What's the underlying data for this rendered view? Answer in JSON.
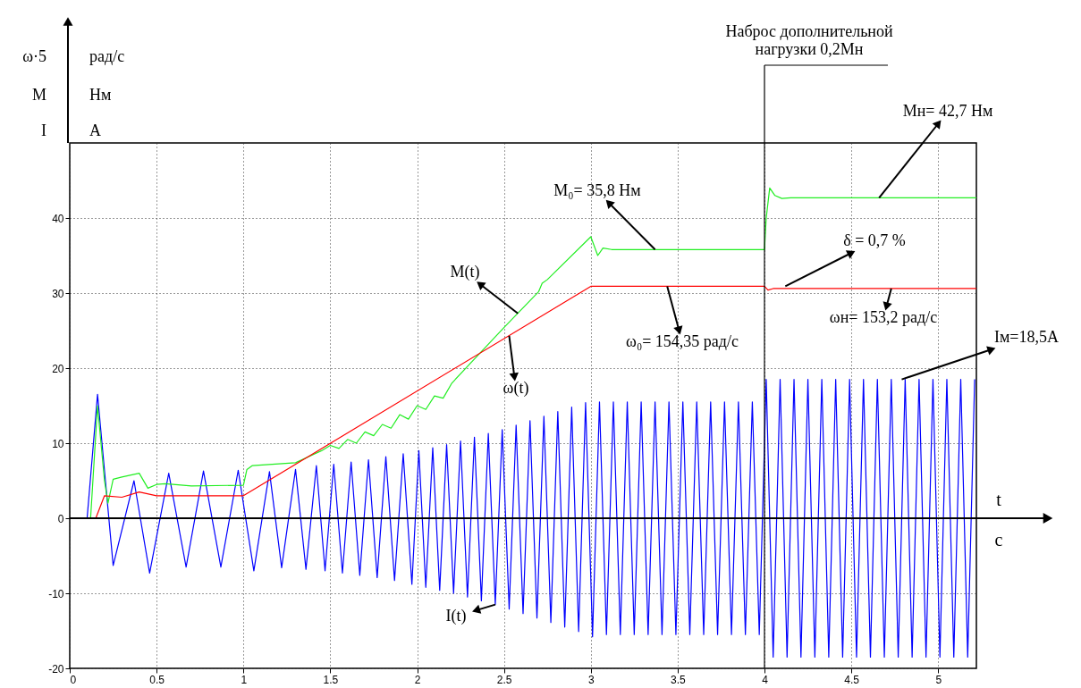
{
  "chart_data": {
    "type": "line",
    "xlabel": "t",
    "xlim": [
      0,
      5.22
    ],
    "ylim": [
      -20,
      50
    ],
    "xticks": [
      0,
      0.5,
      1,
      1.5,
      2,
      2.5,
      3,
      3.5,
      4,
      4.5,
      5
    ],
    "yticks": [
      -20,
      -10,
      0,
      10,
      20,
      30,
      40
    ],
    "grid": true,
    "line_style": "solid",
    "series": [
      {
        "color": "#0000ff",
        "x": [
          0,
          0.1,
          0.16,
          0.25,
          0.37,
          0.46,
          0.57,
          0.67,
          0.77,
          0.87,
          0.97,
          1.06,
          1.15,
          1.22,
          1.3,
          1.36,
          1.42,
          1.47,
          1.52,
          1.57,
          1.62,
          1.67,
          1.72,
          1.77,
          1.82,
          1.87,
          1.92,
          1.97,
          2.01,
          2.05,
          2.09,
          2.13,
          2.17,
          2.21,
          2.25,
          2.29,
          2.33,
          2.37,
          2.41,
          2.45,
          2.49,
          2.53,
          2.57,
          2.61,
          2.65,
          2.69,
          2.73,
          2.77,
          2.81,
          2.85,
          2.89,
          2.93,
          2.97,
          3.01,
          3.05,
          3.09,
          3.13,
          3.17,
          3.21,
          3.25,
          3.29,
          3.33,
          3.37,
          3.41,
          3.45,
          3.49,
          3.53,
          3.57,
          3.61,
          3.65,
          3.69,
          3.73,
          3.77,
          3.81,
          3.85,
          3.89,
          3.93,
          3.97,
          4.01,
          4.05,
          4.09,
          4.13,
          4.17,
          4.21,
          4.25,
          4.29,
          4.33,
          4.37,
          4.41,
          4.45,
          4.49,
          4.53,
          4.57,
          4.61,
          4.65,
          4.69,
          4.73,
          4.77,
          4.81,
          4.85,
          4.89,
          4.93,
          4.97,
          5.01,
          5.05,
          5.09,
          5.13,
          5.17,
          5.21
        ],
        "values": [
          0,
          0,
          16.5,
          -6.3,
          5.0,
          -7.3,
          6.0,
          -6.5,
          6.3,
          -6.5,
          6.4,
          -7.0,
          6.2,
          -6.6,
          6.5,
          -6.8,
          7.0,
          -7.0,
          7.2,
          -7.3,
          7.5,
          -7.6,
          7.8,
          -7.9,
          8.2,
          -8.3,
          8.6,
          -8.8,
          9.0,
          -9.2,
          9.4,
          -9.6,
          9.8,
          -10.0,
          10.3,
          -10.5,
          10.8,
          -11.0,
          11.3,
          -11.5,
          11.8,
          -12.1,
          12.4,
          -12.7,
          13.0,
          -13.3,
          13.6,
          -13.9,
          14.2,
          -14.5,
          14.8,
          -15.1,
          15.4,
          -15.8,
          15.5,
          -15.5,
          15.5,
          -15.5,
          15.5,
          -15.5,
          15.5,
          -15.5,
          15.5,
          -15.5,
          15.5,
          -15.5,
          15.5,
          -15.5,
          15.5,
          -15.5,
          15.5,
          -15.5,
          15.5,
          -15.5,
          15.5,
          -15.5,
          15.5,
          -15.5,
          18.5,
          -18.5,
          18.5,
          -18.5,
          18.5,
          -18.5,
          18.5,
          -18.5,
          18.5,
          -18.5,
          18.5,
          -18.5,
          18.5,
          -18.5,
          18.5,
          -18.5,
          18.5,
          -18.5,
          18.5,
          -18.5,
          18.5,
          -18.5,
          18.5,
          -18.5,
          18.5,
          -18.5,
          18.5,
          -18.5,
          18.5,
          -18.5,
          18.5
        ]
      },
      {
        "color": "#22ee22",
        "x": [
          0,
          0.12,
          0.16,
          0.2,
          0.22,
          0.25,
          0.3,
          0.4,
          0.45,
          0.5,
          0.55,
          0.7,
          1.0,
          1.02,
          1.05,
          1.3,
          1.45,
          1.5,
          1.55,
          1.6,
          1.65,
          1.7,
          1.75,
          1.8,
          1.85,
          1.9,
          1.95,
          2.0,
          2.05,
          2.1,
          2.15,
          2.2,
          2.5,
          2.7,
          2.72,
          2.75,
          3.0,
          3.04,
          3.07,
          3.12,
          4.0,
          4.01,
          4.03,
          4.06,
          4.1,
          4.15,
          5.22
        ],
        "values": [
          0,
          0,
          15,
          5,
          2,
          5.2,
          5.5,
          6,
          4.0,
          4.5,
          4.6,
          4.3,
          4.4,
          6.5,
          7.0,
          7.4,
          9,
          9.7,
          9.3,
          10.5,
          10.0,
          11.5,
          11.0,
          12.5,
          12.0,
          13.8,
          13.2,
          15,
          14.5,
          16.3,
          16,
          18,
          25.4,
          30.2,
          31.3,
          31.8,
          37.5,
          35.0,
          36.0,
          35.8,
          35.8,
          40,
          44,
          43,
          42.6,
          42.7,
          42.7
        ]
      },
      {
        "color": "#ff0000",
        "x": [
          0,
          0.15,
          0.2,
          0.3,
          0.4,
          0.5,
          0.6,
          1.0,
          3.0,
          4.0,
          4.02,
          4.05,
          5.22
        ],
        "values": [
          0,
          0,
          3.0,
          2.8,
          3.5,
          3.0,
          3.0,
          3.0,
          30.9,
          30.9,
          30.4,
          30.6,
          30.6
        ]
      }
    ],
    "ref_lines": [
      {
        "axis": "y",
        "value": 0,
        "color": "#000000"
      },
      {
        "axis": "x",
        "value": 4,
        "label": "Наброс дополнительной\nнагрузки 0,2Мн",
        "color": "#000000"
      }
    ],
    "annotations": [
      "ω·5",
      "рад/с",
      "M",
      "Нм",
      "I",
      "A",
      "с",
      {
        "text": "M(t)",
        "x": 2.58,
        "y": 27.3
      },
      {
        "text": "ω(t)",
        "x": 2.53,
        "y": 24.3
      },
      {
        "text": "I(t)",
        "x": 2.45,
        "y": -11.5
      },
      {
        "text": "M₀= 35,8  Нм",
        "x": 3.37,
        "y": 35.8
      },
      {
        "text": "ω₀= 154,35   рад/с",
        "x": 3.44,
        "y": 30.9
      },
      {
        "text": "Mн= 42,7 Нм",
        "x": 4.66,
        "y": 42.7
      },
      {
        "text": "δ = 0,7 %",
        "x": 4.12,
        "y": 30.9
      },
      {
        "text": "ωн= 153,2 рад/с",
        "x": 4.73,
        "y": 30.6
      },
      {
        "text": "Iм=18,5A",
        "x": 4.79,
        "y": 18.5
      }
    ]
  }
}
